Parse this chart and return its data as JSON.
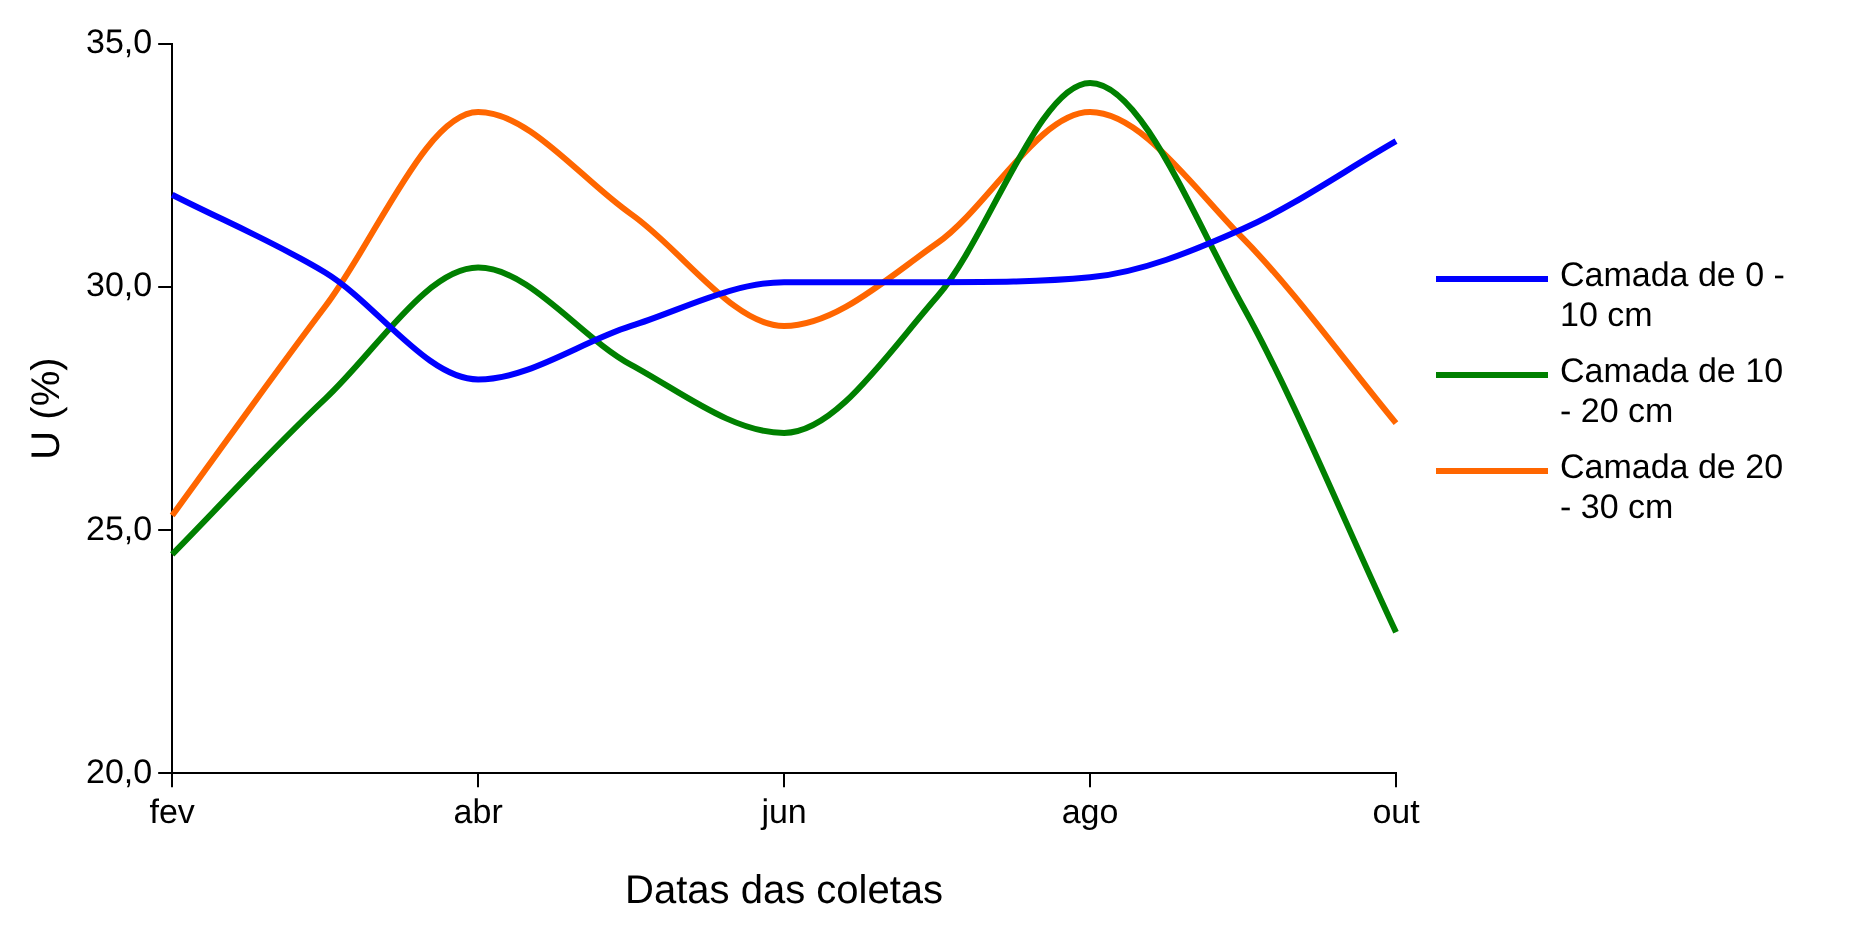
{
  "chart_data": {
    "type": "line",
    "xlabel": "Datas das coletas",
    "ylabel": "U (%)",
    "categories": [
      "fev",
      null,
      "abr",
      null,
      "jun",
      null,
      "ago",
      null,
      "out"
    ],
    "series": [
      {
        "name": "Camada de 0 - 10 cm",
        "color": "#0000ff",
        "values": [
          31.9,
          30.3,
          28.1,
          29.2,
          30.1,
          30.1,
          30.2,
          31.2,
          33.0
        ]
      },
      {
        "name": "Camada de 10 - 20 cm",
        "color": "#008000",
        "values": [
          24.5,
          27.7,
          30.4,
          28.4,
          27.0,
          29.8,
          34.2,
          29.6,
          22.9
        ]
      },
      {
        "name": "Camada de 20 - 30 cm",
        "color": "#ff6600",
        "values": [
          25.3,
          29.6,
          33.6,
          31.5,
          29.2,
          30.9,
          33.6,
          31.0,
          27.2
        ]
      }
    ],
    "ylim": [
      20,
      35
    ],
    "yticks": [
      {
        "value": 20,
        "label": "20,0"
      },
      {
        "value": 25,
        "label": "25,0"
      },
      {
        "value": 30,
        "label": "30,0"
      },
      {
        "value": 35,
        "label": "35,0"
      }
    ],
    "grid": false,
    "legend": "right",
    "marker": "none",
    "line_style": "solid"
  }
}
